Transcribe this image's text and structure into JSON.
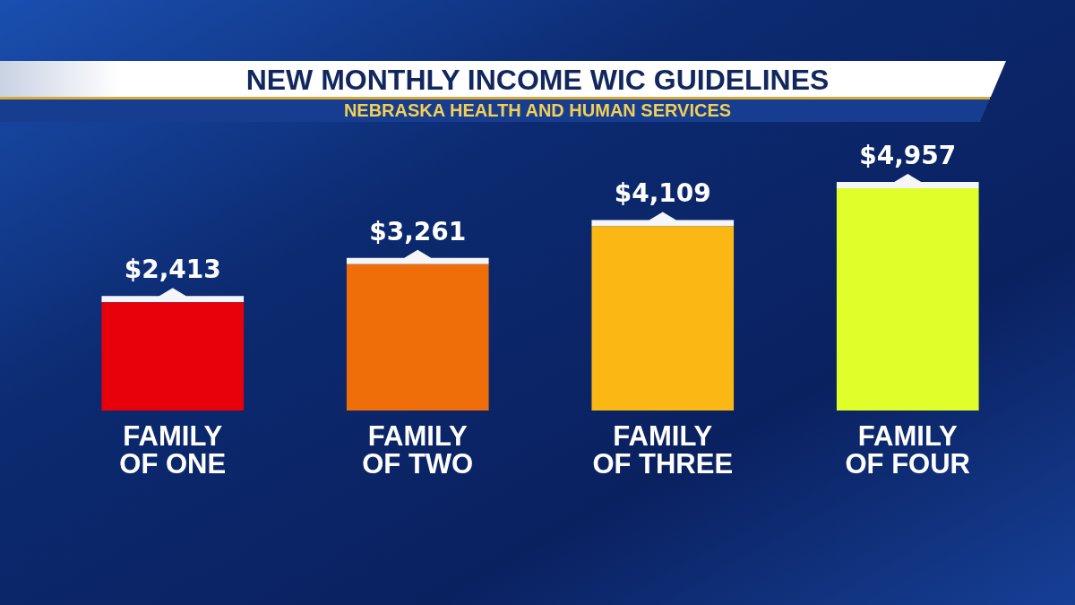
{
  "chart_data": {
    "type": "bar",
    "title": "NEW MONTHLY INCOME WIC GUIDELINES",
    "subtitle": "NEBRASKA HEALTH AND HUMAN SERVICES",
    "categories": [
      "FAMILY OF ONE",
      "FAMILY OF TWO",
      "FAMILY OF THREE",
      "FAMILY OF FOUR"
    ],
    "values": [
      2413,
      3261,
      4109,
      4957
    ],
    "colors": [
      "#e8000a",
      "#f06e0a",
      "#fbb713",
      "#e0ff2a"
    ],
    "value_labels": [
      "$2,413",
      "$3,261",
      "$4,109",
      "$4,957"
    ]
  }
}
